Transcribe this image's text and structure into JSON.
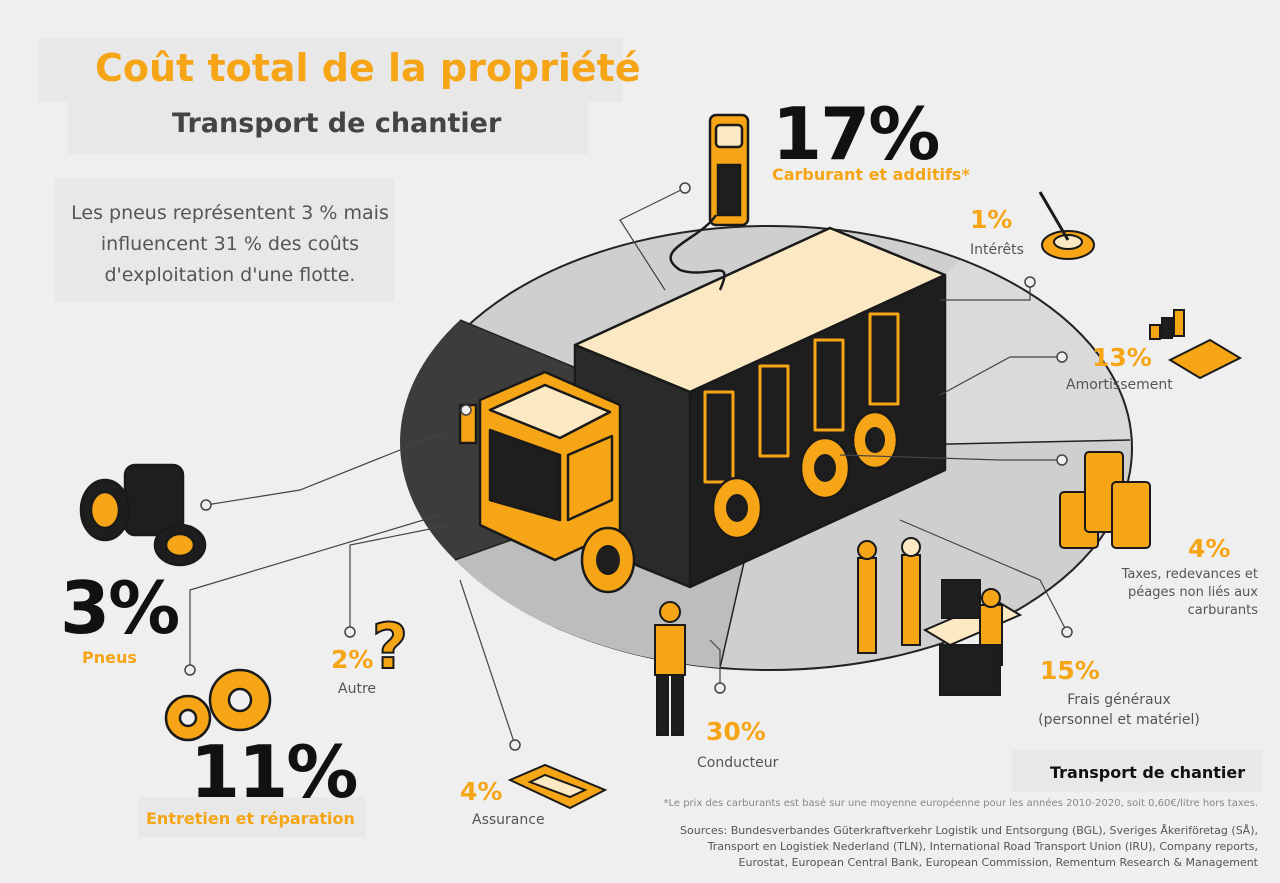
{
  "header": {
    "title": "Coût total de la propriété",
    "subtitle": "Transport de chantier",
    "intro": "Les pneus représentent 3 % mais influencent 31 % des coûts d'exploitation d'une flotte."
  },
  "segments": {
    "fuel": {
      "value": "17%",
      "label": "Carburant et additifs*"
    },
    "interest": {
      "value": "1%",
      "label": "Intérêts"
    },
    "depreciation": {
      "value": "13%",
      "label": "Amortissement"
    },
    "taxes": {
      "value": "4%",
      "label": "Taxes, redevances et péages non liés aux carburants"
    },
    "overhead": {
      "value": "15%",
      "label": "Frais généraux (personnel et matériel)"
    },
    "driver": {
      "value": "30%",
      "label": "Conducteur"
    },
    "insurance": {
      "value": "4%",
      "label": "Assurance"
    },
    "other": {
      "value": "2%",
      "label": "Autre"
    },
    "maintenance": {
      "value": "11%",
      "label": "Entretien et réparation"
    },
    "tyres": {
      "value": "3%",
      "label": "Pneus"
    }
  },
  "footer": {
    "heading": "Transport de chantier",
    "note": "*Le prix des carburants est basé sur une moyenne européenne pour les années 2010-2020, soit 0,60€/litre hors taxes.",
    "sources_1": "Sources: Bundesverbandes Güterkraftverkehr Logistik und Entsorgung (BGL), Sveriges Åkeriföretag (SÅ),",
    "sources_2": "Transport en Logistiek Nederland (TLN), International Road Transport Union (IRU), Company reports,",
    "sources_3": "Eurostat, European Central Bank, European Commission, Rementum Research & Management"
  },
  "colors": {
    "accent": "#f5a515",
    "dark": "#1a1a1a",
    "background": "#efefef"
  }
}
